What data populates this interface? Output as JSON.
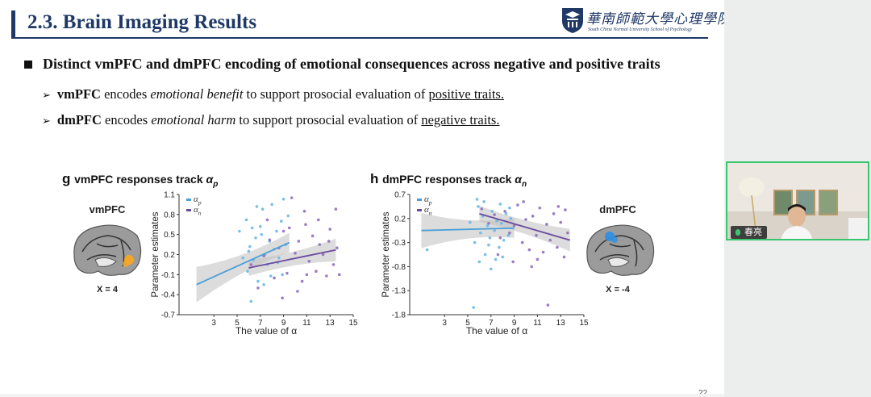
{
  "slide": {
    "title": "2.3. Brain Imaging Results",
    "logo": {
      "cn": "華南師範大學心理學院",
      "en": "South China Normal University School of Psychology"
    },
    "main_bullet": "Distinct vmPFC and dmPFC encoding of emotional consequences across negative and positive traits",
    "sub1": {
      "bold": "vmPFC",
      "t1": " encodes ",
      "italic": "emotional benefit",
      "t2": " to support prosocial evaluation of ",
      "underline": "positive traits."
    },
    "sub2": {
      "bold": "dmPFC",
      "t1": " encodes ",
      "italic": "emotional harm",
      "t2": " to support prosocial evaluation of ",
      "underline": "negative traits."
    },
    "page_number": "22"
  },
  "colors": {
    "title": "#1f3866",
    "alpha_p": "#4a9fd8",
    "alpha_n": "#6b4a9e",
    "scatter_p": "#6bb8e6",
    "scatter_n": "#8f6fbf",
    "ci": "#bfbfbf",
    "brain_spot_vm": "#f5a623",
    "brain_spot_dm": "#2f8fe0",
    "webcam_border": "#37c66e"
  },
  "webcam": {
    "name": "春亮"
  },
  "chart_data": [
    {
      "type": "scatter",
      "panel_letter": "g",
      "title_prefix": "vmPFC responses track ",
      "title_symbol": "α",
      "title_sub": "p",
      "brain_label": "vmPFC",
      "brain_coord": "X = 4",
      "xlabel": "The value of α",
      "ylabel": "Parameter estimates",
      "xlim": [
        0,
        15
      ],
      "ylim": [
        -0.7,
        1.1
      ],
      "xticks": [
        "3",
        "5",
        "7",
        "9",
        "11",
        "13",
        "15"
      ],
      "yticks": [
        "1.1",
        "0.8",
        "0.5",
        "0.2",
        "-0.1",
        "-0.4",
        "-0.7"
      ],
      "legend": [
        {
          "sym": "α",
          "sub": "p"
        },
        {
          "sym": "α",
          "sub": "n"
        }
      ],
      "series": [
        {
          "name": "αp",
          "fit": [
            [
              1.5,
              -0.25
            ],
            [
              9.5,
              0.38
            ]
          ],
          "points": [
            [
              5.2,
              0.55
            ],
            [
              5.8,
              0.72
            ],
            [
              6.1,
              0.32
            ],
            [
              6.4,
              0.12
            ],
            [
              6.6,
              0.45
            ],
            [
              7.0,
              0.62
            ],
            [
              7.2,
              0.88
            ],
            [
              7.4,
              0.2
            ],
            [
              7.6,
              0.05
            ],
            [
              7.8,
              0.4
            ],
            [
              8.0,
              0.95
            ],
            [
              8.2,
              0.28
            ],
            [
              8.4,
              0.55
            ],
            [
              8.6,
              0.15
            ],
            [
              8.8,
              0.7
            ],
            [
              9.0,
              1.03
            ],
            [
              9.2,
              0.35
            ],
            [
              6.8,
              -0.2
            ],
            [
              5.9,
              -0.05
            ],
            [
              6.3,
              0.6
            ],
            [
              7.9,
              -0.12
            ],
            [
              8.5,
              0.08
            ],
            [
              6.0,
              0.25
            ],
            [
              7.1,
              0.5
            ],
            [
              5.5,
              0.15
            ],
            [
              9.4,
              0.78
            ],
            [
              6.7,
              0.92
            ],
            [
              8.9,
              -0.1
            ],
            [
              7.3,
              -0.25
            ],
            [
              6.2,
              -0.5
            ]
          ]
        },
        {
          "name": "αn",
          "fit": [
            [
              6.0,
              0.0
            ],
            [
              13.5,
              0.27
            ]
          ],
          "points": [
            [
              6.2,
              0.05
            ],
            [
              6.8,
              -0.3
            ],
            [
              7.3,
              0.18
            ],
            [
              7.8,
              0.42
            ],
            [
              8.2,
              -0.15
            ],
            [
              8.6,
              0.3
            ],
            [
              9.0,
              0.55
            ],
            [
              9.3,
              -0.08
            ],
            [
              9.7,
              1.05
            ],
            [
              10.0,
              0.22
            ],
            [
              10.3,
              0.4
            ],
            [
              10.6,
              -0.2
            ],
            [
              10.9,
              0.65
            ],
            [
              11.2,
              0.1
            ],
            [
              11.5,
              0.48
            ],
            [
              11.8,
              -0.05
            ],
            [
              12.1,
              0.35
            ],
            [
              12.4,
              0.2
            ],
            [
              12.7,
              -0.12
            ],
            [
              13.0,
              0.58
            ],
            [
              13.3,
              0.05
            ],
            [
              13.6,
              0.3
            ],
            [
              13.8,
              -0.1
            ],
            [
              9.5,
              0.6
            ],
            [
              10.8,
              0.85
            ],
            [
              12.0,
              0.72
            ],
            [
              8.9,
              -0.45
            ],
            [
              11.0,
              -0.1
            ],
            [
              7.6,
              0.72
            ],
            [
              10.2,
              -0.35
            ],
            [
              12.9,
              0.4
            ],
            [
              13.5,
              0.88
            ]
          ]
        }
      ]
    },
    {
      "type": "scatter",
      "panel_letter": "h",
      "title_prefix": "dmPFC responses track ",
      "title_symbol": "α",
      "title_sub": "n",
      "brain_label": "dmPFC",
      "brain_coord": "X = -4",
      "xlabel": "The value of α",
      "ylabel": "Parameter estimates",
      "xlim": [
        0,
        15
      ],
      "ylim": [
        -1.8,
        0.7
      ],
      "xticks": [
        "3",
        "5",
        "7",
        "9",
        "11",
        "13",
        "15"
      ],
      "yticks": [
        "0.7",
        "0.2",
        "-0.3",
        "-0.8",
        "-1.3",
        "-1.8"
      ],
      "legend": [
        {
          "sym": "α",
          "sub": "p"
        },
        {
          "sym": "α",
          "sub": "n"
        }
      ],
      "series": [
        {
          "name": "αp",
          "fit": [
            [
              1.0,
              -0.05
            ],
            [
              9.0,
              0.0
            ]
          ],
          "points": [
            [
              1.5,
              -0.45
            ],
            [
              5.2,
              0.12
            ],
            [
              5.6,
              -0.3
            ],
            [
              5.9,
              0.45
            ],
            [
              6.1,
              -0.1
            ],
            [
              6.3,
              0.25
            ],
            [
              6.5,
              -0.55
            ],
            [
              6.7,
              0.05
            ],
            [
              6.9,
              -0.2
            ],
            [
              7.1,
              0.35
            ],
            [
              7.3,
              -0.05
            ],
            [
              7.5,
              0.15
            ],
            [
              7.7,
              -0.4
            ],
            [
              7.9,
              0.1
            ],
            [
              8.1,
              -0.25
            ],
            [
              8.3,
              0.3
            ],
            [
              8.5,
              -0.15
            ],
            [
              8.7,
              0.2
            ],
            [
              6.0,
              -0.7
            ],
            [
              7.0,
              -0.85
            ],
            [
              8.0,
              -0.6
            ],
            [
              5.8,
              0.6
            ],
            [
              6.4,
              0.55
            ],
            [
              7.4,
              -0.65
            ],
            [
              8.6,
              0.42
            ],
            [
              5.5,
              -1.65
            ],
            [
              6.8,
              -0.35
            ],
            [
              7.8,
              0.5
            ]
          ]
        },
        {
          "name": "αn",
          "fit": [
            [
              6.0,
              0.3
            ],
            [
              13.8,
              -0.25
            ]
          ],
          "points": [
            [
              6.2,
              0.4
            ],
            [
              6.8,
              0.1
            ],
            [
              7.3,
              0.28
            ],
            [
              7.8,
              -0.2
            ],
            [
              8.2,
              0.35
            ],
            [
              8.6,
              -0.1
            ],
            [
              9.0,
              0.05
            ],
            [
              9.3,
              0.48
            ],
            [
              9.7,
              -0.3
            ],
            [
              10.0,
              0.18
            ],
            [
              10.3,
              -0.45
            ],
            [
              10.6,
              0.25
            ],
            [
              10.9,
              -0.15
            ],
            [
              11.2,
              0.42
            ],
            [
              11.5,
              -0.5
            ],
            [
              11.8,
              0.08
            ],
            [
              12.1,
              -0.25
            ],
            [
              12.4,
              0.3
            ],
            [
              12.7,
              -0.4
            ],
            [
              13.0,
              0.12
            ],
            [
              13.3,
              -0.6
            ],
            [
              13.6,
              -0.1
            ],
            [
              8.9,
              -0.7
            ],
            [
              10.5,
              -0.8
            ],
            [
              11.9,
              -1.6
            ],
            [
              9.8,
              0.55
            ],
            [
              12.8,
              0.45
            ],
            [
              7.6,
              -0.55
            ],
            [
              11.0,
              -0.65
            ],
            [
              13.4,
              0.38
            ]
          ]
        }
      ]
    }
  ]
}
